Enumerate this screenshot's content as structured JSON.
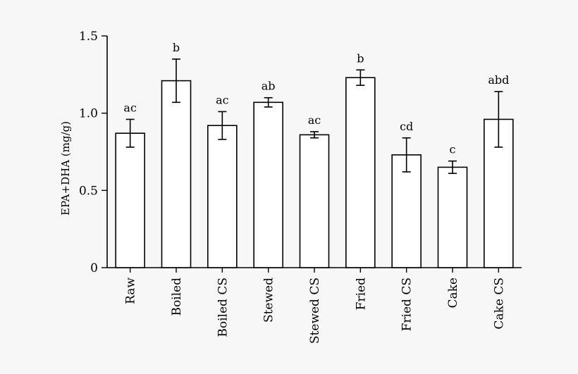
{
  "chart_data": {
    "type": "bar",
    "title": "",
    "xlabel": "",
    "ylabel": "EPA+DHA (mg/g)",
    "ylim": [
      0,
      1.5
    ],
    "yticks": [
      0,
      0.5,
      1.0,
      1.5
    ],
    "ytick_labels": [
      "0",
      "0.5",
      "1.0",
      "1.5"
    ],
    "categories": [
      "Raw",
      "Boiled",
      "Boiled CS",
      "Stewed",
      "Stewed CS",
      "Fried",
      "Fried CS",
      "Cake",
      "Cake CS"
    ],
    "values": [
      0.87,
      1.21,
      0.92,
      1.07,
      0.86,
      1.23,
      0.73,
      0.65,
      0.96
    ],
    "errors": [
      0.09,
      0.14,
      0.09,
      0.03,
      0.02,
      0.05,
      0.11,
      0.04,
      0.18
    ],
    "significance_labels": [
      "ac",
      "b",
      "ac",
      "ab",
      "ac",
      "b",
      "cd",
      "c",
      "abd"
    ],
    "grid": false,
    "bar_fill": "#ffffff",
    "bar_stroke": "#000000"
  }
}
